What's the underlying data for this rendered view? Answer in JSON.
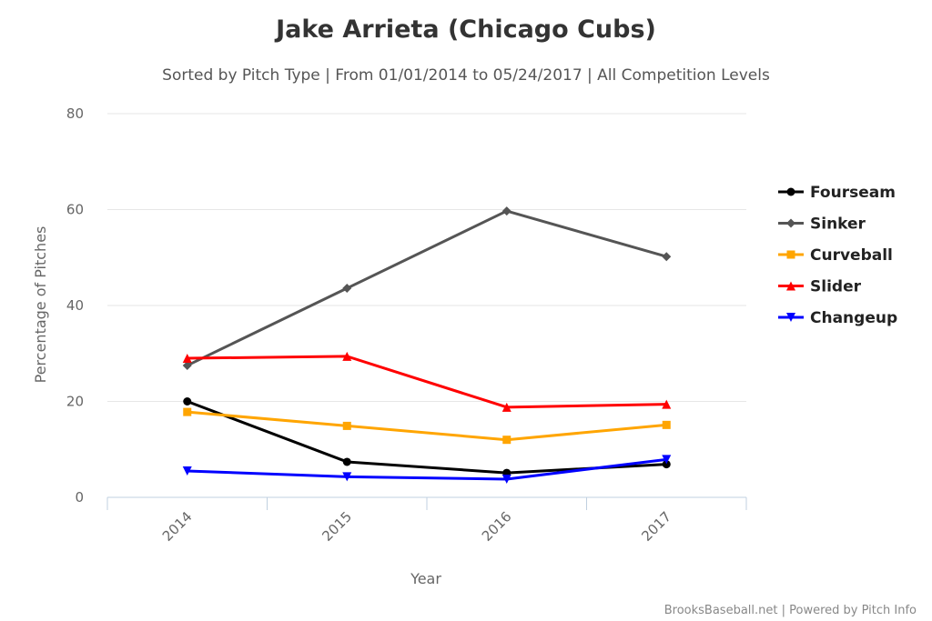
{
  "credits": "BrooksBaseball.net | Powered by Pitch Info",
  "chart_data": {
    "type": "line",
    "title": "Jake Arrieta (Chicago Cubs)",
    "subtitle": "Sorted by Pitch Type | From 01/01/2014 to 05/24/2017 | All Competition Levels",
    "xlabel": "Year",
    "ylabel": "Percentage of Pitches",
    "categories": [
      "2014",
      "2015",
      "2016",
      "2017"
    ],
    "ylim": [
      0,
      80
    ],
    "yticks": [
      "0",
      "20",
      "40",
      "60",
      "80"
    ],
    "grid": true,
    "legend": "right",
    "series": [
      {
        "name": "Fourseam",
        "color": "#000000",
        "marker": "circle",
        "values": [
          20.0,
          7.4,
          5.1,
          6.9
        ]
      },
      {
        "name": "Sinker",
        "color": "#555555",
        "marker": "diamond",
        "values": [
          27.5,
          43.6,
          59.7,
          50.2
        ]
      },
      {
        "name": "Curveball",
        "color": "#ffa500",
        "marker": "square",
        "values": [
          17.8,
          14.9,
          12.0,
          15.1
        ]
      },
      {
        "name": "Slider",
        "color": "#ff0000",
        "marker": "triangle",
        "values": [
          29.0,
          29.4,
          18.8,
          19.4
        ]
      },
      {
        "name": "Changeup",
        "color": "#0000ff",
        "marker": "triangle-down",
        "values": [
          5.5,
          4.3,
          3.8,
          7.9
        ]
      }
    ]
  }
}
